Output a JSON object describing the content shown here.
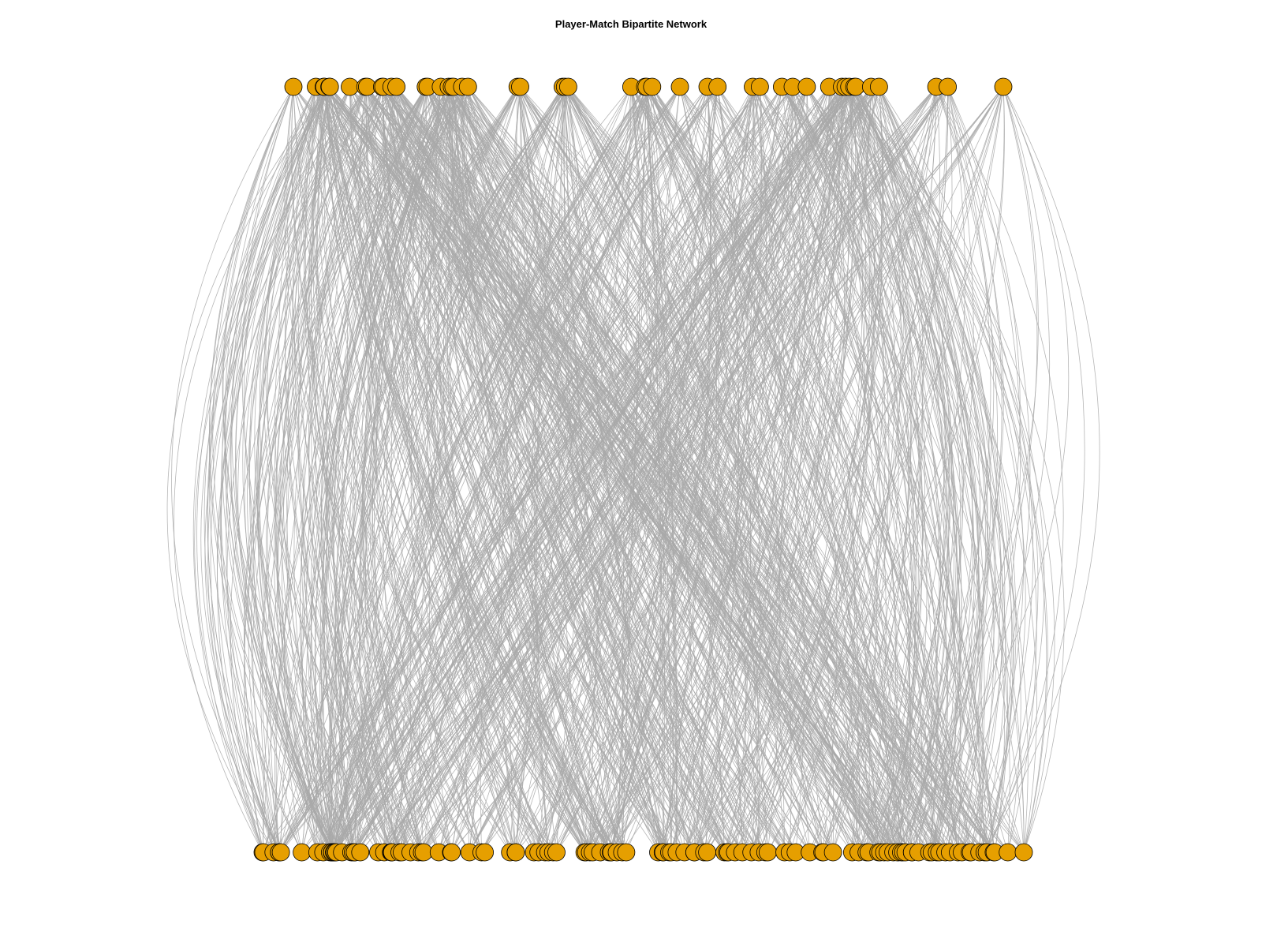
{
  "title": "Player-Match Bipartite Network",
  "colors": {
    "node_fill": "#E69F00",
    "node_stroke": "#000000",
    "edge": "#A9A9A9",
    "background": "#FFFFFF"
  },
  "network": {
    "type": "bipartite",
    "layout": "two-row",
    "node_shape": "circle",
    "top_node_count": 49,
    "bottom_node_count": 120,
    "edges_per_top_node": 24,
    "node_labels_shown": false
  }
}
